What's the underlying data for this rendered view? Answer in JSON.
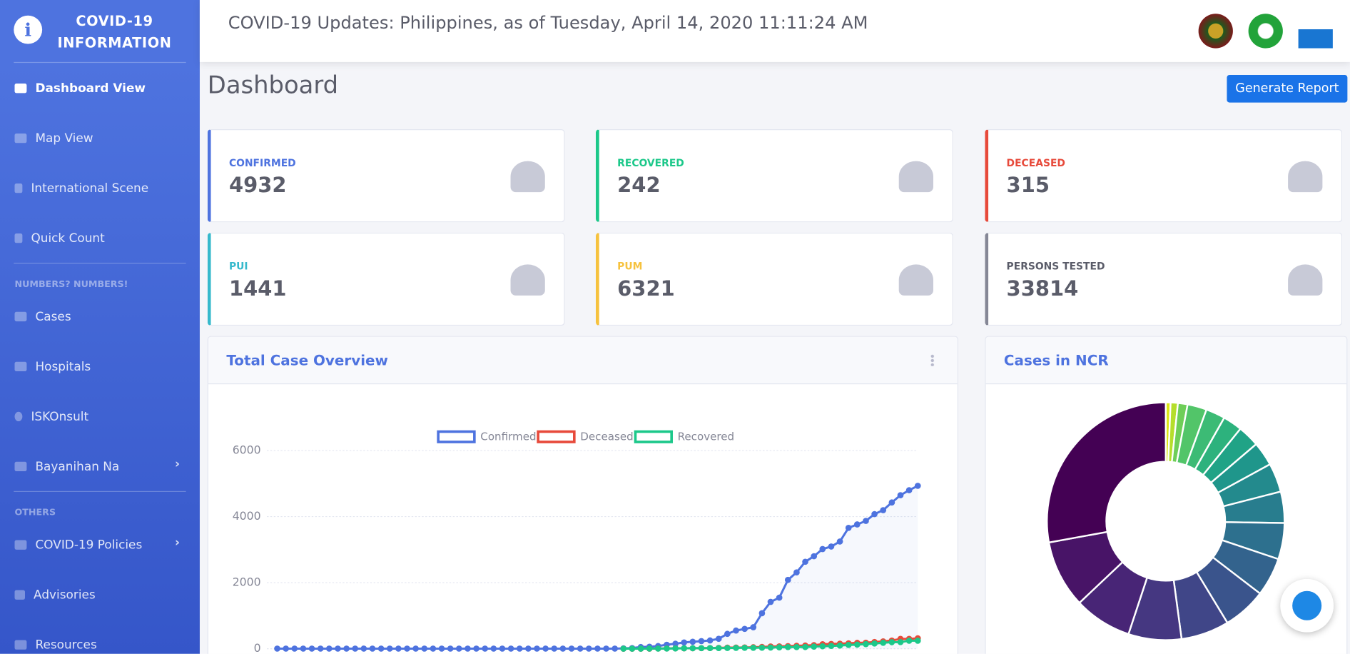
{
  "sidebar": {
    "brand": "COVID-19 INFORMATION",
    "nav": [
      "Dashboard View",
      "Map View",
      "International Scene",
      "Quick Count"
    ],
    "sections": [
      {
        "heading": "NUMBERS? NUMBERS!",
        "items": [
          "Cases",
          "Hospitals",
          "ISKOnsult",
          "Bayanihan Na"
        ]
      },
      {
        "heading": "OTHERS",
        "items": [
          "COVID-19 Policies",
          "Advisories",
          "Resources"
        ]
      }
    ]
  },
  "header": {
    "title": "COVID-19 Updates: Philippines, as of Tuesday, April 14, 2020 11:11:24 AM"
  },
  "page_title": "Dashboard",
  "button": "Generate Report",
  "cards": [
    {
      "label": "Confirmed",
      "value": 4932
    },
    {
      "label": "Recovered",
      "value": 242
    },
    {
      "label": "Deceased",
      "value": 315
    },
    {
      "label": "PUI",
      "value": 1441
    },
    {
      "label": "PUM",
      "value": 6321
    },
    {
      "label": "Persons Tested",
      "value": 33814
    }
  ],
  "chart_data": [
    {
      "type": "line",
      "title": "Total Case Overview",
      "ylim": [
        0,
        6000
      ],
      "yticks": [
        0,
        2000,
        4000,
        6000
      ],
      "grid": true,
      "series": [
        {
          "name": "Confirmed",
          "color": "#4e73df",
          "values": [
            3,
            3,
            3,
            3,
            3,
            3,
            3,
            3,
            3,
            3,
            3,
            3,
            3,
            3,
            3,
            3,
            3,
            3,
            3,
            3,
            3,
            3,
            3,
            3,
            3,
            3,
            3,
            3,
            3,
            3,
            3,
            3,
            3,
            3,
            3,
            3,
            3,
            3,
            3,
            3,
            10,
            20,
            50,
            60,
            80,
            120,
            150,
            190,
            210,
            230,
            250,
            300,
            450,
            550,
            600,
            650,
            1075,
            1418,
            1546,
            2084,
            2311,
            2633,
            2800,
            3018,
            3094,
            3246,
            3660,
            3764,
            3870,
            4076,
            4195,
            4428,
            4648,
            4800,
            4932
          ]
        },
        {
          "name": "Deceased",
          "color": "#e74a3b",
          "values": [
            null,
            null,
            null,
            null,
            null,
            null,
            null,
            null,
            null,
            null,
            null,
            null,
            null,
            null,
            null,
            null,
            null,
            null,
            null,
            null,
            null,
            null,
            null,
            null,
            null,
            null,
            null,
            null,
            null,
            null,
            null,
            null,
            null,
            null,
            null,
            null,
            null,
            null,
            null,
            null,
            1,
            1,
            2,
            2,
            5,
            8,
            12,
            12,
            14,
            17,
            19,
            25,
            33,
            35,
            38,
            45,
            54,
            68,
            71,
            78,
            88,
            96,
            107,
            136,
            144,
            152,
            163,
            177,
            182,
            203,
            221,
            247,
            297,
            297,
            315
          ]
        },
        {
          "name": "Recovered",
          "color": "#1cc88a",
          "values": [
            null,
            null,
            null,
            null,
            null,
            null,
            null,
            null,
            null,
            null,
            null,
            null,
            null,
            null,
            null,
            null,
            null,
            null,
            null,
            null,
            null,
            null,
            null,
            null,
            null,
            null,
            null,
            null,
            null,
            null,
            null,
            null,
            null,
            null,
            null,
            null,
            null,
            null,
            null,
            null,
            1,
            1,
            2,
            4,
            4,
            5,
            8,
            13,
            15,
            17,
            19,
            20,
            22,
            25,
            28,
            29,
            31,
            35,
            42,
            49,
            50,
            51,
            64,
            73,
            84,
            96,
            114,
            124,
            140,
            157,
            180,
            197,
            200,
            242,
            242
          ]
        }
      ]
    },
    {
      "type": "pie",
      "title": "Cases in NCR",
      "donut": true,
      "values": [
        2,
        3,
        4,
        8,
        8,
        8,
        9,
        10,
        12,
        13,
        15,
        16,
        18,
        20,
        22,
        24,
        28,
        85
      ],
      "colors": [
        "#dde318",
        "#b5de2b",
        "#6ece58",
        "#52c569",
        "#3cbb75",
        "#2db27d",
        "#20a386",
        "#1f968b",
        "#238a8d",
        "#287d8e",
        "#2d708e",
        "#33638d",
        "#3a548c",
        "#404688",
        "#453781",
        "#482576",
        "#481467",
        "#440154"
      ]
    }
  ]
}
